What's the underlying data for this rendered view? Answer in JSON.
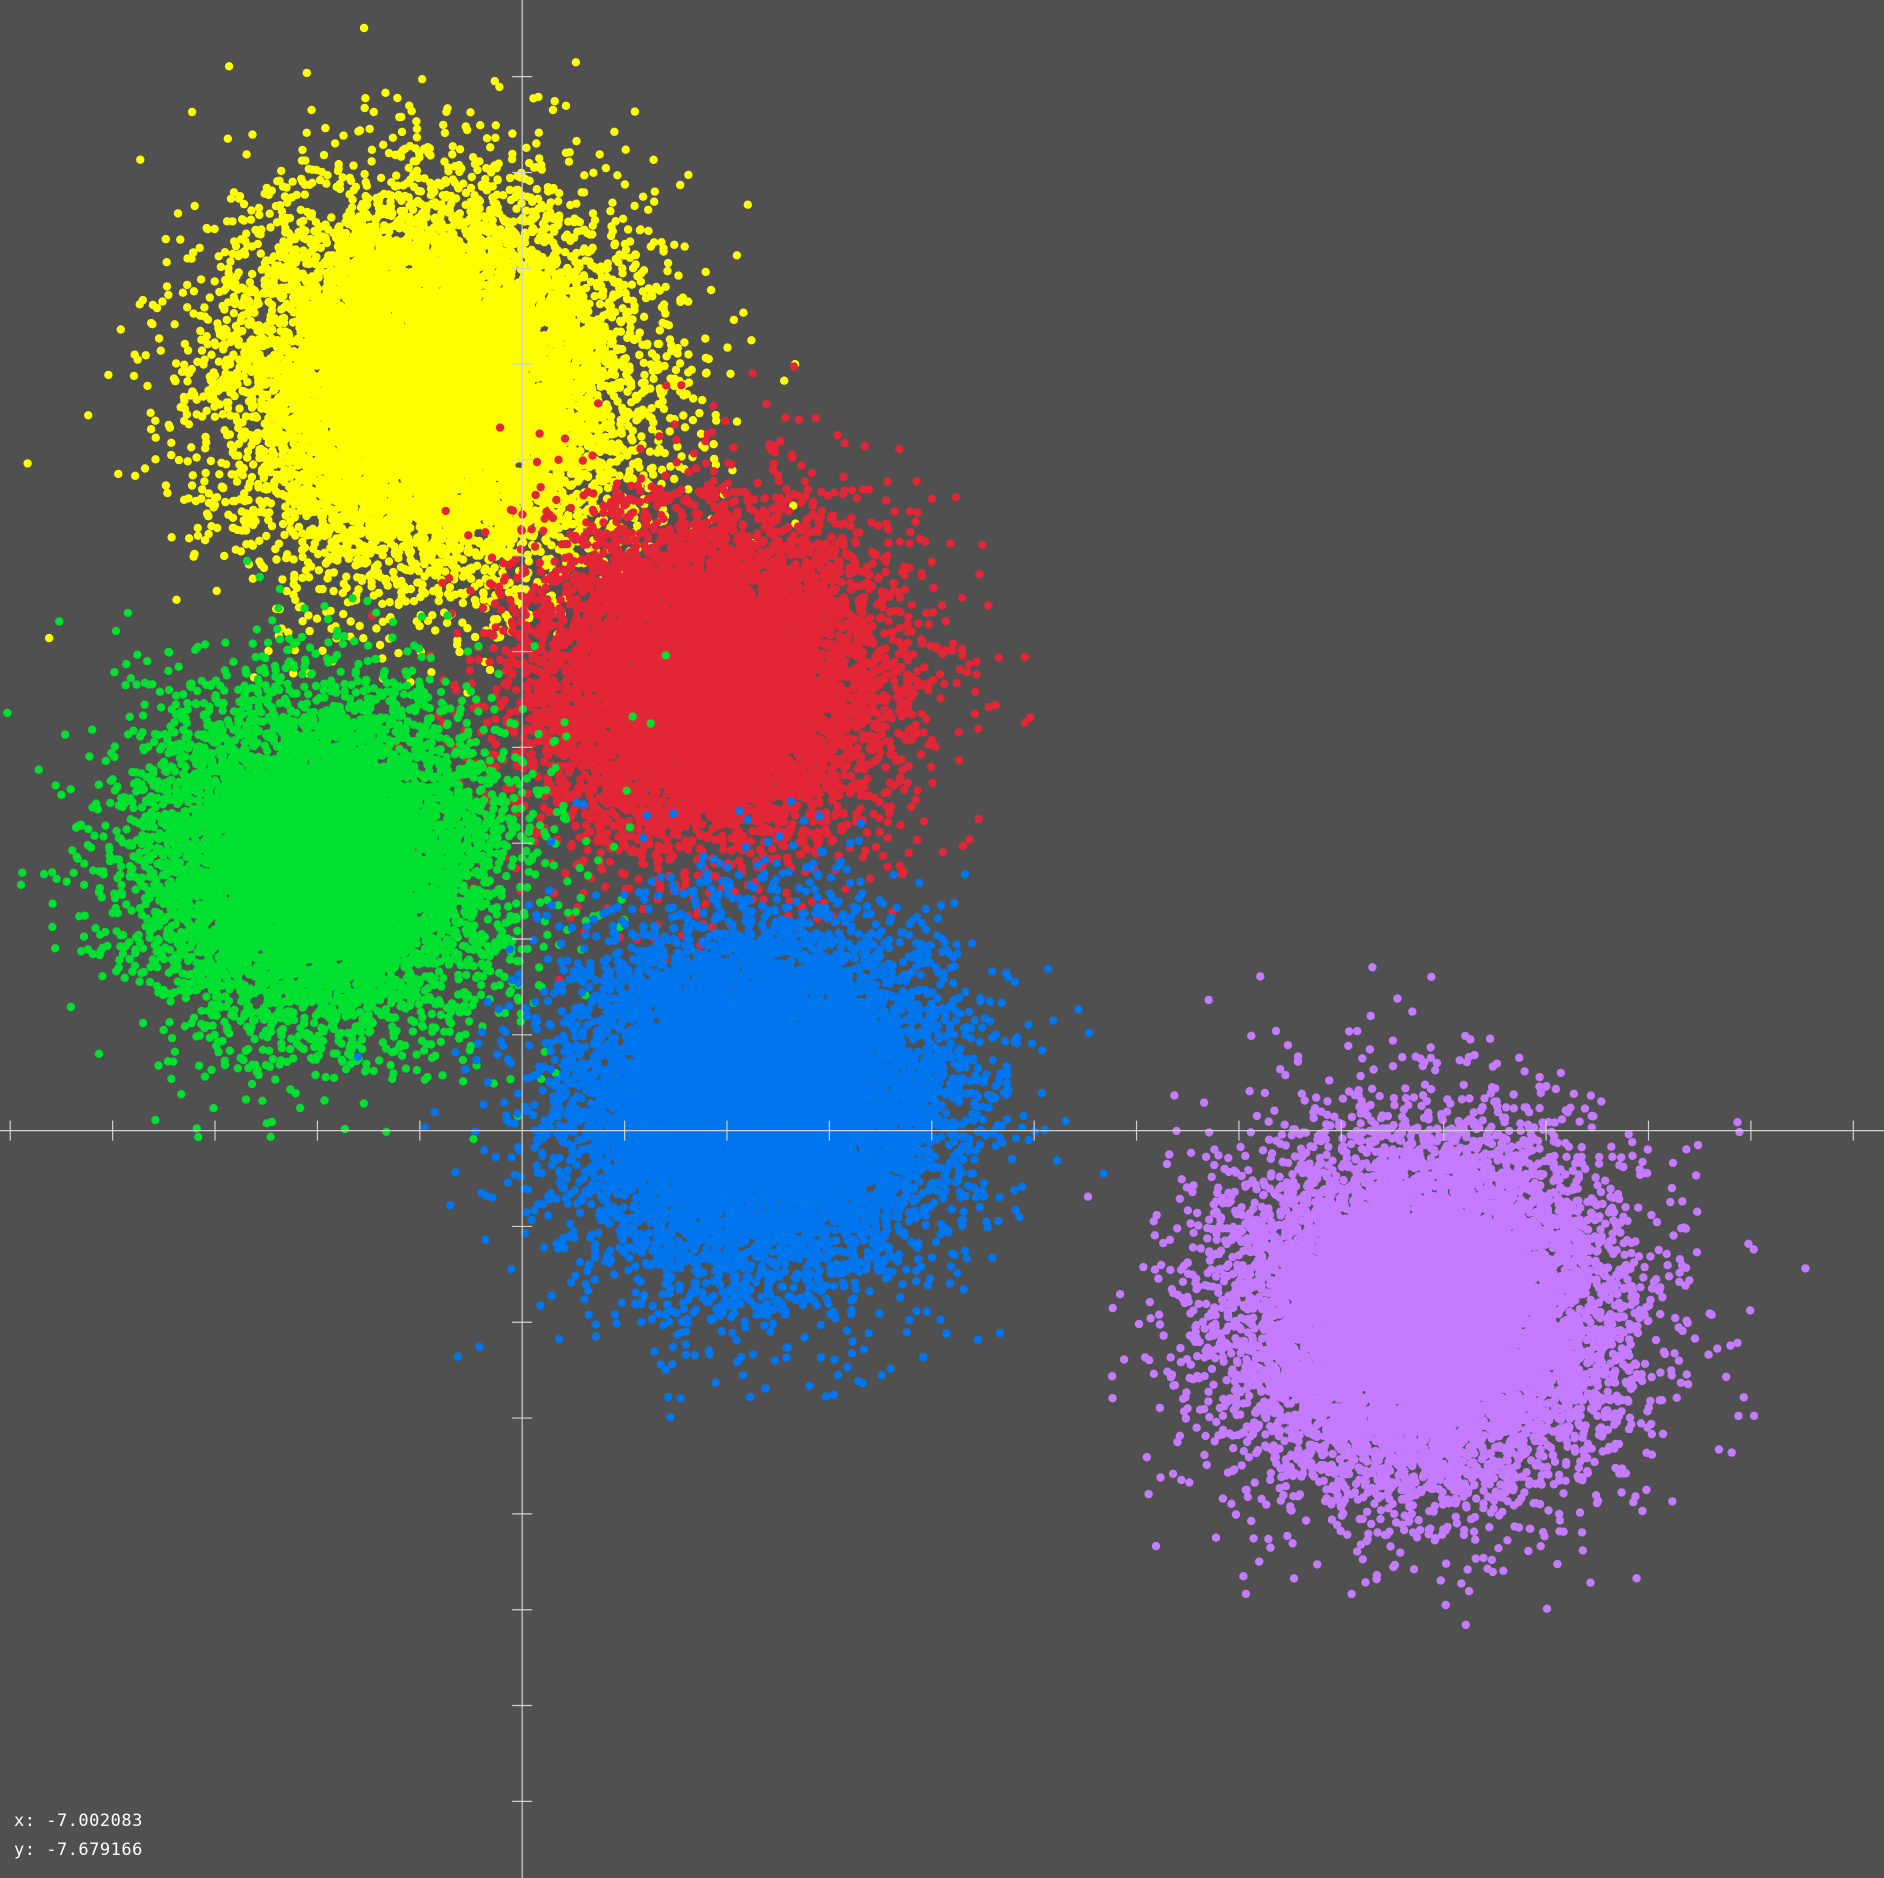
{
  "chart_data": {
    "type": "scatter",
    "title": "",
    "xlabel": "",
    "ylabel": "",
    "xlim": [
      -5.1,
      13.3
    ],
    "ylim": [
      -7.8,
      11.8
    ],
    "grid": false,
    "legend": "none",
    "axis_color": "#d0d0d0",
    "background": "#505050",
    "series": [
      {
        "color": "#ffff00",
        "center": [
          -0.9,
          7.8
        ],
        "spread": 0.95,
        "points": 12000
      },
      {
        "color": "#e32636",
        "center": [
          1.8,
          4.7
        ],
        "spread": 0.85,
        "points": 9000
      },
      {
        "color": "#00e030",
        "center": [
          -2.0,
          2.8
        ],
        "spread": 0.85,
        "points": 9000
      },
      {
        "color": "#0076ee",
        "center": [
          2.3,
          0.3
        ],
        "spread": 0.9,
        "points": 11000
      },
      {
        "color": "#c57bff",
        "center": [
          8.8,
          -1.9
        ],
        "spread": 0.9,
        "points": 12000
      }
    ]
  },
  "cursor": {
    "x_label": "x: -7.002083",
    "y_label": "y: -7.679166"
  }
}
